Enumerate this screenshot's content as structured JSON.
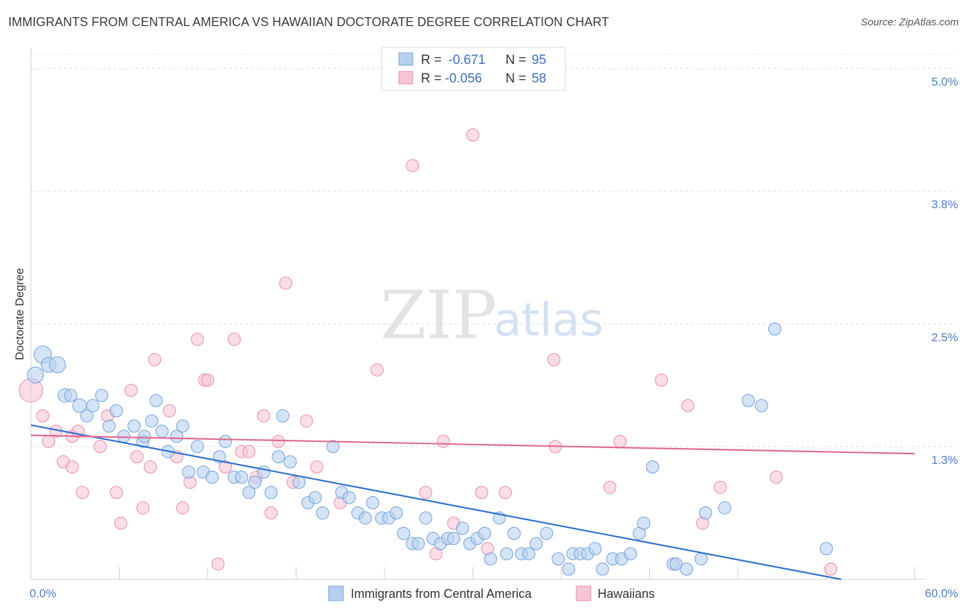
{
  "header": {
    "title": "IMMIGRANTS FROM CENTRAL AMERICA VS HAWAIIAN DOCTORATE DEGREE CORRELATION CHART",
    "source": "Source: ZipAtlas.com"
  },
  "watermark": {
    "zip": "ZIP",
    "atlas": "atlas"
  },
  "chart_data": {
    "type": "scatter",
    "title": "IMMIGRANTS FROM CENTRAL AMERICA VS HAWAIIAN DOCTORATE DEGREE CORRELATION CHART",
    "xlabel": "",
    "ylabel": "Doctorate Degree",
    "xlim": [
      0,
      60
    ],
    "ylim": [
      0,
      5.2
    ],
    "x_tick_labels": {
      "min": "0.0%",
      "max": "60.0%"
    },
    "y_ticks": [
      {
        "value": 1.3,
        "label": "1.3%"
      },
      {
        "value": 2.5,
        "label": "2.5%"
      },
      {
        "value": 3.8,
        "label": "3.8%"
      },
      {
        "value": 5.0,
        "label": "5.0%"
      }
    ],
    "grid": true,
    "legend_position": "top-center",
    "series": [
      {
        "name": "Immigrants from Central America",
        "color": "#6f9fdc",
        "fill": "#b8d0f0",
        "line_color": "#2e6fd1",
        "stats": {
          "r_label": "R =",
          "r_value": "-0.671",
          "n_label": "N =",
          "n_value": "95"
        },
        "trend": {
          "x": [
            0,
            55
          ],
          "y": [
            1.51,
            0.0
          ]
        },
        "points": [
          [
            0.3,
            2.0,
            1.3
          ],
          [
            0.8,
            2.2,
            1.4
          ],
          [
            1.2,
            2.1,
            1.2
          ],
          [
            1.8,
            2.1,
            1.3
          ],
          [
            2.3,
            1.8,
            1.1
          ],
          [
            2.7,
            1.8,
            1.0
          ],
          [
            3.3,
            1.7,
            1.1
          ],
          [
            3.8,
            1.6,
            1.0
          ],
          [
            4.2,
            1.7,
            1.0
          ],
          [
            4.8,
            1.8,
            1.0
          ],
          [
            5.3,
            1.5,
            1.0
          ],
          [
            5.8,
            1.65,
            1.0
          ],
          [
            6.3,
            1.4,
            1.0
          ],
          [
            7.0,
            1.5,
            1.0
          ],
          [
            7.6,
            1.35,
            1.0
          ],
          [
            7.7,
            1.4,
            1.0
          ],
          [
            8.2,
            1.55,
            1.0
          ],
          [
            8.5,
            1.75,
            1.0
          ],
          [
            8.9,
            1.45,
            1.0
          ],
          [
            9.3,
            1.25,
            1.0
          ],
          [
            9.9,
            1.4,
            1.0
          ],
          [
            10.3,
            1.5,
            1.0
          ],
          [
            10.7,
            1.05,
            1.0
          ],
          [
            11.3,
            1.3,
            1.0
          ],
          [
            11.7,
            1.05,
            1.0
          ],
          [
            12.3,
            1.0,
            1.0
          ],
          [
            12.8,
            1.2,
            1.0
          ],
          [
            13.2,
            1.35,
            1.0
          ],
          [
            13.8,
            1.0,
            1.0
          ],
          [
            14.3,
            1.0,
            1.0
          ],
          [
            14.8,
            0.85,
            1.0
          ],
          [
            15.2,
            0.95,
            1.0
          ],
          [
            15.8,
            1.05,
            1.0
          ],
          [
            16.3,
            0.85,
            1.0
          ],
          [
            16.8,
            1.2,
            1.0
          ],
          [
            17.1,
            1.6,
            1.0
          ],
          [
            17.6,
            1.15,
            1.0
          ],
          [
            18.2,
            0.95,
            1.0
          ],
          [
            18.8,
            0.75,
            1.0
          ],
          [
            19.3,
            0.8,
            1.0
          ],
          [
            19.8,
            0.65,
            1.0
          ],
          [
            20.5,
            1.3,
            1.0
          ],
          [
            21.1,
            0.85,
            1.0
          ],
          [
            21.6,
            0.8,
            1.0
          ],
          [
            22.2,
            0.65,
            1.0
          ],
          [
            22.7,
            0.6,
            1.0
          ],
          [
            23.2,
            0.75,
            1.0
          ],
          [
            23.8,
            0.6,
            1.0
          ],
          [
            24.3,
            0.6,
            1.0
          ],
          [
            24.8,
            0.65,
            1.0
          ],
          [
            25.3,
            0.45,
            1.0
          ],
          [
            25.9,
            0.35,
            1.0
          ],
          [
            26.3,
            0.35,
            1.0
          ],
          [
            26.8,
            0.6,
            1.0
          ],
          [
            27.3,
            0.4,
            1.0
          ],
          [
            27.8,
            0.35,
            1.0
          ],
          [
            28.3,
            0.4,
            1.0
          ],
          [
            28.7,
            0.4,
            1.0
          ],
          [
            29.3,
            0.5,
            1.0
          ],
          [
            29.8,
            0.35,
            1.0
          ],
          [
            30.3,
            0.4,
            1.0
          ],
          [
            30.8,
            0.45,
            1.0
          ],
          [
            31.2,
            0.2,
            1.0
          ],
          [
            31.8,
            0.6,
            1.0
          ],
          [
            32.3,
            0.25,
            1.0
          ],
          [
            32.8,
            0.45,
            1.0
          ],
          [
            33.3,
            0.25,
            1.0
          ],
          [
            33.8,
            0.25,
            1.0
          ],
          [
            34.3,
            0.35,
            1.0
          ],
          [
            35.0,
            0.45,
            1.0
          ],
          [
            35.8,
            0.2,
            1.0
          ],
          [
            36.5,
            0.1,
            1.0
          ],
          [
            36.8,
            0.25,
            1.0
          ],
          [
            37.3,
            0.25,
            1.0
          ],
          [
            37.8,
            0.25,
            1.0
          ],
          [
            38.3,
            0.3,
            1.0
          ],
          [
            38.8,
            0.1,
            1.0
          ],
          [
            39.5,
            0.2,
            1.0
          ],
          [
            40.1,
            0.2,
            1.0
          ],
          [
            40.7,
            0.25,
            1.0
          ],
          [
            41.3,
            0.45,
            1.0
          ],
          [
            41.6,
            0.55,
            1.0
          ],
          [
            42.2,
            1.1,
            1.0
          ],
          [
            43.6,
            0.15,
            1.0
          ],
          [
            43.8,
            0.15,
            1.0
          ],
          [
            44.5,
            0.1,
            1.0
          ],
          [
            45.5,
            0.2,
            1.0
          ],
          [
            45.8,
            0.65,
            1.0
          ],
          [
            47.1,
            0.7,
            1.0
          ],
          [
            48.7,
            1.75,
            1.0
          ],
          [
            49.6,
            1.7,
            1.0
          ],
          [
            50.5,
            2.45,
            1.0
          ],
          [
            54.0,
            0.3,
            1.0
          ]
        ]
      },
      {
        "name": "Hawaiians",
        "color": "#e98aaa",
        "fill": "#f6c6d6",
        "line_color": "#e06a90",
        "stats": {
          "r_label": "R =",
          "r_value": "-0.056",
          "n_label": "N =",
          "n_value": "58"
        },
        "trend": {
          "x": [
            0,
            60
          ],
          "y": [
            1.41,
            1.23
          ]
        },
        "points": [
          [
            0.0,
            1.85,
            1.9
          ],
          [
            0.8,
            1.6,
            1.0
          ],
          [
            1.2,
            1.35,
            1.0
          ],
          [
            1.7,
            1.45,
            1.0
          ],
          [
            2.2,
            1.15,
            1.0
          ],
          [
            2.8,
            1.1,
            1.0
          ],
          [
            2.8,
            1.4,
            1.0
          ],
          [
            3.2,
            1.45,
            1.0
          ],
          [
            3.5,
            0.85,
            1.0
          ],
          [
            4.7,
            1.3,
            1.0
          ],
          [
            5.2,
            1.6,
            1.0
          ],
          [
            5.8,
            0.85,
            1.0
          ],
          [
            6.1,
            0.55,
            1.0
          ],
          [
            6.8,
            1.85,
            1.0
          ],
          [
            7.2,
            1.2,
            1.0
          ],
          [
            7.6,
            0.7,
            1.0
          ],
          [
            8.1,
            1.1,
            1.0
          ],
          [
            8.4,
            2.15,
            1.0
          ],
          [
            9.4,
            1.65,
            1.0
          ],
          [
            9.9,
            1.2,
            1.0
          ],
          [
            10.3,
            0.7,
            1.0
          ],
          [
            10.8,
            0.95,
            1.0
          ],
          [
            11.3,
            2.35,
            1.0
          ],
          [
            11.8,
            1.95,
            1.0
          ],
          [
            12.0,
            1.95,
            1.0
          ],
          [
            12.7,
            0.15,
            1.0
          ],
          [
            13.2,
            1.1,
            1.0
          ],
          [
            13.8,
            2.35,
            1.0
          ],
          [
            14.3,
            1.25,
            1.0
          ],
          [
            14.8,
            1.25,
            1.0
          ],
          [
            15.3,
            1.0,
            1.0
          ],
          [
            15.8,
            1.6,
            1.0
          ],
          [
            16.3,
            0.65,
            1.0
          ],
          [
            16.8,
            1.35,
            1.0
          ],
          [
            17.3,
            2.9,
            1.0
          ],
          [
            17.8,
            0.95,
            1.0
          ],
          [
            18.7,
            1.55,
            1.0
          ],
          [
            19.4,
            1.1,
            1.0
          ],
          [
            21.0,
            0.75,
            1.0
          ],
          [
            23.5,
            2.05,
            1.0
          ],
          [
            25.9,
            4.05,
            1.0
          ],
          [
            26.8,
            0.85,
            1.0
          ],
          [
            27.5,
            0.25,
            1.0
          ],
          [
            28.0,
            1.35,
            1.0
          ],
          [
            28.7,
            0.55,
            1.0
          ],
          [
            30.0,
            4.35,
            1.0
          ],
          [
            30.6,
            0.85,
            1.0
          ],
          [
            31.0,
            0.3,
            1.0
          ],
          [
            32.2,
            0.85,
            1.0
          ],
          [
            35.5,
            2.15,
            1.0
          ],
          [
            35.6,
            1.3,
            1.0
          ],
          [
            39.3,
            0.9,
            1.0
          ],
          [
            40.0,
            1.35,
            1.0
          ],
          [
            42.8,
            1.95,
            1.0
          ],
          [
            44.6,
            1.7,
            1.0
          ],
          [
            45.6,
            0.55,
            1.0
          ],
          [
            46.8,
            0.9,
            1.0
          ],
          [
            50.6,
            1.0,
            1.0
          ],
          [
            54.3,
            0.1,
            1.0
          ]
        ]
      }
    ]
  }
}
